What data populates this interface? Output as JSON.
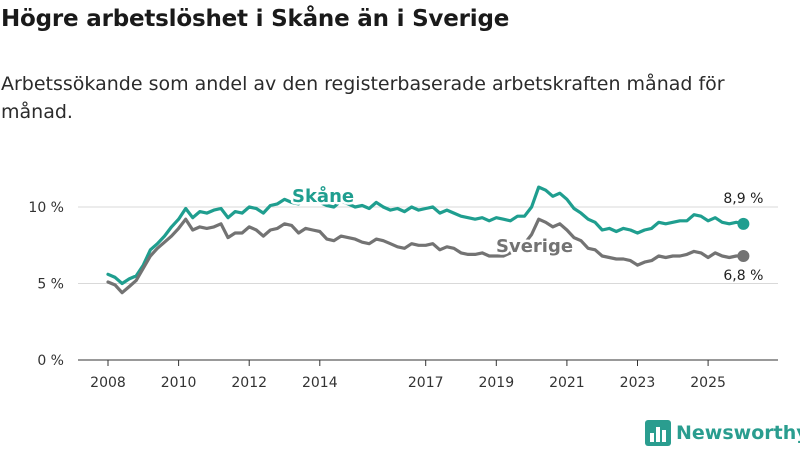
{
  "header": {
    "title": "Högre arbetslöshet i Skåne än i Sverige",
    "subtitle": "Arbetssökande som andel av den registerbaserade arbetskraften månad för månad."
  },
  "brand": {
    "name": "Newsworthy",
    "icon": "bar-chart-logo-icon",
    "color": "#2a9d8f"
  },
  "chart_data": {
    "type": "line",
    "title": "Högre arbetslöshet i Skåne än i Sverige",
    "xlabel": "",
    "ylabel": "",
    "ylim": [
      0,
      10
    ],
    "xlim": [
      2007.95,
      2026.15
    ],
    "yticks": [
      {
        "value": 0,
        "label": "0 %"
      },
      {
        "value": 5,
        "label": "5 %"
      },
      {
        "value": 10,
        "label": "10 %"
      }
    ],
    "xticks": [
      2008,
      2010,
      2012,
      2014,
      2017,
      2019,
      2021,
      2023,
      2025
    ],
    "grid": true,
    "series": [
      {
        "name": "Skåne",
        "color": "#1f9e8f",
        "end_label": "8,9 %",
        "points": [
          [
            2008.0,
            5.6
          ],
          [
            2008.2,
            5.4
          ],
          [
            2008.4,
            5.0
          ],
          [
            2008.6,
            5.3
          ],
          [
            2008.8,
            5.5
          ],
          [
            2009.0,
            6.2
          ],
          [
            2009.2,
            7.2
          ],
          [
            2009.4,
            7.6
          ],
          [
            2009.6,
            8.1
          ],
          [
            2009.8,
            8.7
          ],
          [
            2010.0,
            9.2
          ],
          [
            2010.2,
            9.9
          ],
          [
            2010.4,
            9.3
          ],
          [
            2010.6,
            9.7
          ],
          [
            2010.8,
            9.6
          ],
          [
            2011.0,
            9.8
          ],
          [
            2011.2,
            9.9
          ],
          [
            2011.4,
            9.3
          ],
          [
            2011.6,
            9.7
          ],
          [
            2011.8,
            9.6
          ],
          [
            2012.0,
            10.0
          ],
          [
            2012.2,
            9.9
          ],
          [
            2012.4,
            9.6
          ],
          [
            2012.6,
            10.1
          ],
          [
            2012.8,
            10.2
          ],
          [
            2013.0,
            10.5
          ],
          [
            2013.2,
            10.3
          ],
          [
            2013.4,
            10.2
          ],
          [
            2013.6,
            10.6
          ],
          [
            2013.8,
            10.5
          ],
          [
            2014.0,
            10.3
          ],
          [
            2014.2,
            10.1
          ],
          [
            2014.4,
            10.0
          ],
          [
            2014.6,
            10.4
          ],
          [
            2014.8,
            10.2
          ],
          [
            2015.0,
            10.0
          ],
          [
            2015.2,
            10.1
          ],
          [
            2015.4,
            9.9
          ],
          [
            2015.6,
            10.3
          ],
          [
            2015.8,
            10.0
          ],
          [
            2016.0,
            9.8
          ],
          [
            2016.2,
            9.9
          ],
          [
            2016.4,
            9.7
          ],
          [
            2016.6,
            10.0
          ],
          [
            2016.8,
            9.8
          ],
          [
            2017.0,
            9.9
          ],
          [
            2017.2,
            10.0
          ],
          [
            2017.4,
            9.6
          ],
          [
            2017.6,
            9.8
          ],
          [
            2017.8,
            9.6
          ],
          [
            2018.0,
            9.4
          ],
          [
            2018.2,
            9.3
          ],
          [
            2018.4,
            9.2
          ],
          [
            2018.6,
            9.3
          ],
          [
            2018.8,
            9.1
          ],
          [
            2019.0,
            9.3
          ],
          [
            2019.2,
            9.2
          ],
          [
            2019.4,
            9.1
          ],
          [
            2019.6,
            9.4
          ],
          [
            2019.8,
            9.4
          ],
          [
            2020.0,
            10.0
          ],
          [
            2020.2,
            11.3
          ],
          [
            2020.4,
            11.1
          ],
          [
            2020.6,
            10.7
          ],
          [
            2020.8,
            10.9
          ],
          [
            2021.0,
            10.5
          ],
          [
            2021.2,
            9.9
          ],
          [
            2021.4,
            9.6
          ],
          [
            2021.6,
            9.2
          ],
          [
            2021.8,
            9.0
          ],
          [
            2022.0,
            8.5
          ],
          [
            2022.2,
            8.6
          ],
          [
            2022.4,
            8.4
          ],
          [
            2022.6,
            8.6
          ],
          [
            2022.8,
            8.5
          ],
          [
            2023.0,
            8.3
          ],
          [
            2023.2,
            8.5
          ],
          [
            2023.4,
            8.6
          ],
          [
            2023.6,
            9.0
          ],
          [
            2023.8,
            8.9
          ],
          [
            2024.0,
            9.0
          ],
          [
            2024.2,
            9.1
          ],
          [
            2024.4,
            9.1
          ],
          [
            2024.6,
            9.5
          ],
          [
            2024.8,
            9.4
          ],
          [
            2025.0,
            9.1
          ],
          [
            2025.2,
            9.3
          ],
          [
            2025.4,
            9.0
          ],
          [
            2025.6,
            8.9
          ],
          [
            2025.8,
            9.0
          ],
          [
            2026.0,
            8.9
          ]
        ]
      },
      {
        "name": "Sverige",
        "color": "#737373",
        "end_label": "6,8 %",
        "points": [
          [
            2008.0,
            5.1
          ],
          [
            2008.2,
            4.9
          ],
          [
            2008.4,
            4.4
          ],
          [
            2008.6,
            4.8
          ],
          [
            2008.8,
            5.2
          ],
          [
            2009.0,
            6.0
          ],
          [
            2009.2,
            6.8
          ],
          [
            2009.4,
            7.3
          ],
          [
            2009.6,
            7.7
          ],
          [
            2009.8,
            8.1
          ],
          [
            2010.0,
            8.6
          ],
          [
            2010.2,
            9.2
          ],
          [
            2010.4,
            8.5
          ],
          [
            2010.6,
            8.7
          ],
          [
            2010.8,
            8.6
          ],
          [
            2011.0,
            8.7
          ],
          [
            2011.2,
            8.9
          ],
          [
            2011.4,
            8.0
          ],
          [
            2011.6,
            8.3
          ],
          [
            2011.8,
            8.3
          ],
          [
            2012.0,
            8.7
          ],
          [
            2012.2,
            8.5
          ],
          [
            2012.4,
            8.1
          ],
          [
            2012.6,
            8.5
          ],
          [
            2012.8,
            8.6
          ],
          [
            2013.0,
            8.9
          ],
          [
            2013.2,
            8.8
          ],
          [
            2013.4,
            8.3
          ],
          [
            2013.6,
            8.6
          ],
          [
            2013.8,
            8.5
          ],
          [
            2014.0,
            8.4
          ],
          [
            2014.2,
            7.9
          ],
          [
            2014.4,
            7.8
          ],
          [
            2014.6,
            8.1
          ],
          [
            2014.8,
            8.0
          ],
          [
            2015.0,
            7.9
          ],
          [
            2015.2,
            7.7
          ],
          [
            2015.4,
            7.6
          ],
          [
            2015.6,
            7.9
          ],
          [
            2015.8,
            7.8
          ],
          [
            2016.0,
            7.6
          ],
          [
            2016.2,
            7.4
          ],
          [
            2016.4,
            7.3
          ],
          [
            2016.6,
            7.6
          ],
          [
            2016.8,
            7.5
          ],
          [
            2017.0,
            7.5
          ],
          [
            2017.2,
            7.6
          ],
          [
            2017.4,
            7.2
          ],
          [
            2017.6,
            7.4
          ],
          [
            2017.8,
            7.3
          ],
          [
            2018.0,
            7.0
          ],
          [
            2018.2,
            6.9
          ],
          [
            2018.4,
            6.9
          ],
          [
            2018.6,
            7.0
          ],
          [
            2018.8,
            6.8
          ],
          [
            2019.0,
            6.8
          ],
          [
            2019.2,
            6.8
          ],
          [
            2019.4,
            7.0
          ],
          [
            2019.6,
            7.4
          ],
          [
            2019.8,
            7.6
          ],
          [
            2020.0,
            8.2
          ],
          [
            2020.2,
            9.2
          ],
          [
            2020.4,
            9.0
          ],
          [
            2020.6,
            8.7
          ],
          [
            2020.8,
            8.9
          ],
          [
            2021.0,
            8.5
          ],
          [
            2021.2,
            8.0
          ],
          [
            2021.4,
            7.8
          ],
          [
            2021.6,
            7.3
          ],
          [
            2021.8,
            7.2
          ],
          [
            2022.0,
            6.8
          ],
          [
            2022.2,
            6.7
          ],
          [
            2022.4,
            6.6
          ],
          [
            2022.6,
            6.6
          ],
          [
            2022.8,
            6.5
          ],
          [
            2023.0,
            6.2
          ],
          [
            2023.2,
            6.4
          ],
          [
            2023.4,
            6.5
          ],
          [
            2023.6,
            6.8
          ],
          [
            2023.8,
            6.7
          ],
          [
            2024.0,
            6.8
          ],
          [
            2024.2,
            6.8
          ],
          [
            2024.4,
            6.9
          ],
          [
            2024.6,
            7.1
          ],
          [
            2024.8,
            7.0
          ],
          [
            2025.0,
            6.7
          ],
          [
            2025.2,
            7.0
          ],
          [
            2025.4,
            6.8
          ],
          [
            2025.6,
            6.7
          ],
          [
            2025.8,
            6.8
          ],
          [
            2026.0,
            6.8
          ]
        ]
      }
    ]
  }
}
